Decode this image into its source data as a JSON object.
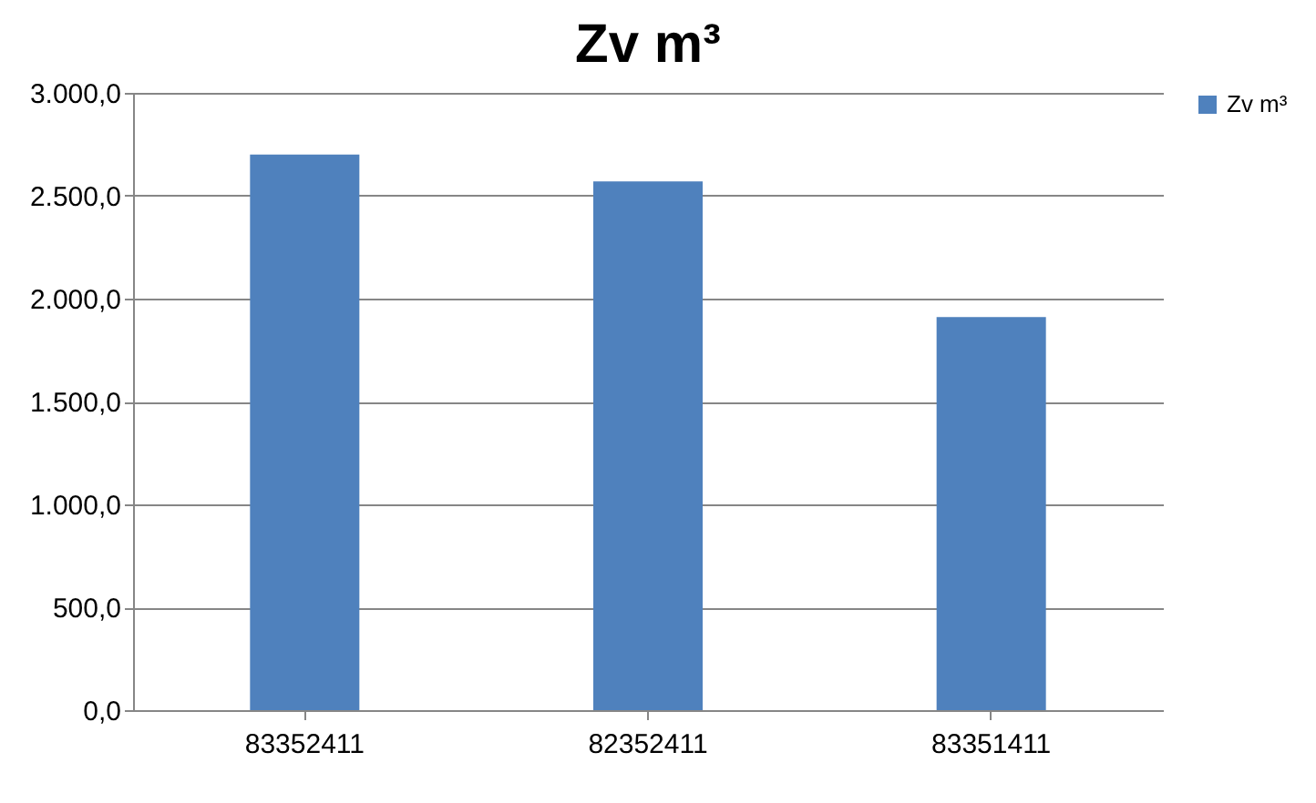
{
  "chart_data": {
    "type": "bar",
    "title": "Zv m³",
    "categories": [
      "83352411",
      "82352411",
      "83351411"
    ],
    "series": [
      {
        "name": "Zv m³",
        "color": "#4f81bd",
        "values": [
          2700,
          2570,
          1910
        ]
      }
    ],
    "ylim": [
      0,
      3000
    ],
    "yticks": [
      {
        "value": 0,
        "label": "0,0"
      },
      {
        "value": 500,
        "label": "500,0"
      },
      {
        "value": 1000,
        "label": "1.000,0"
      },
      {
        "value": 1500,
        "label": "1.500,0"
      },
      {
        "value": 2000,
        "label": "2.000,0"
      },
      {
        "value": 2500,
        "label": "2.500,0"
      },
      {
        "value": 3000,
        "label": "3.000,0"
      }
    ],
    "grid": "y",
    "legend": "right"
  }
}
